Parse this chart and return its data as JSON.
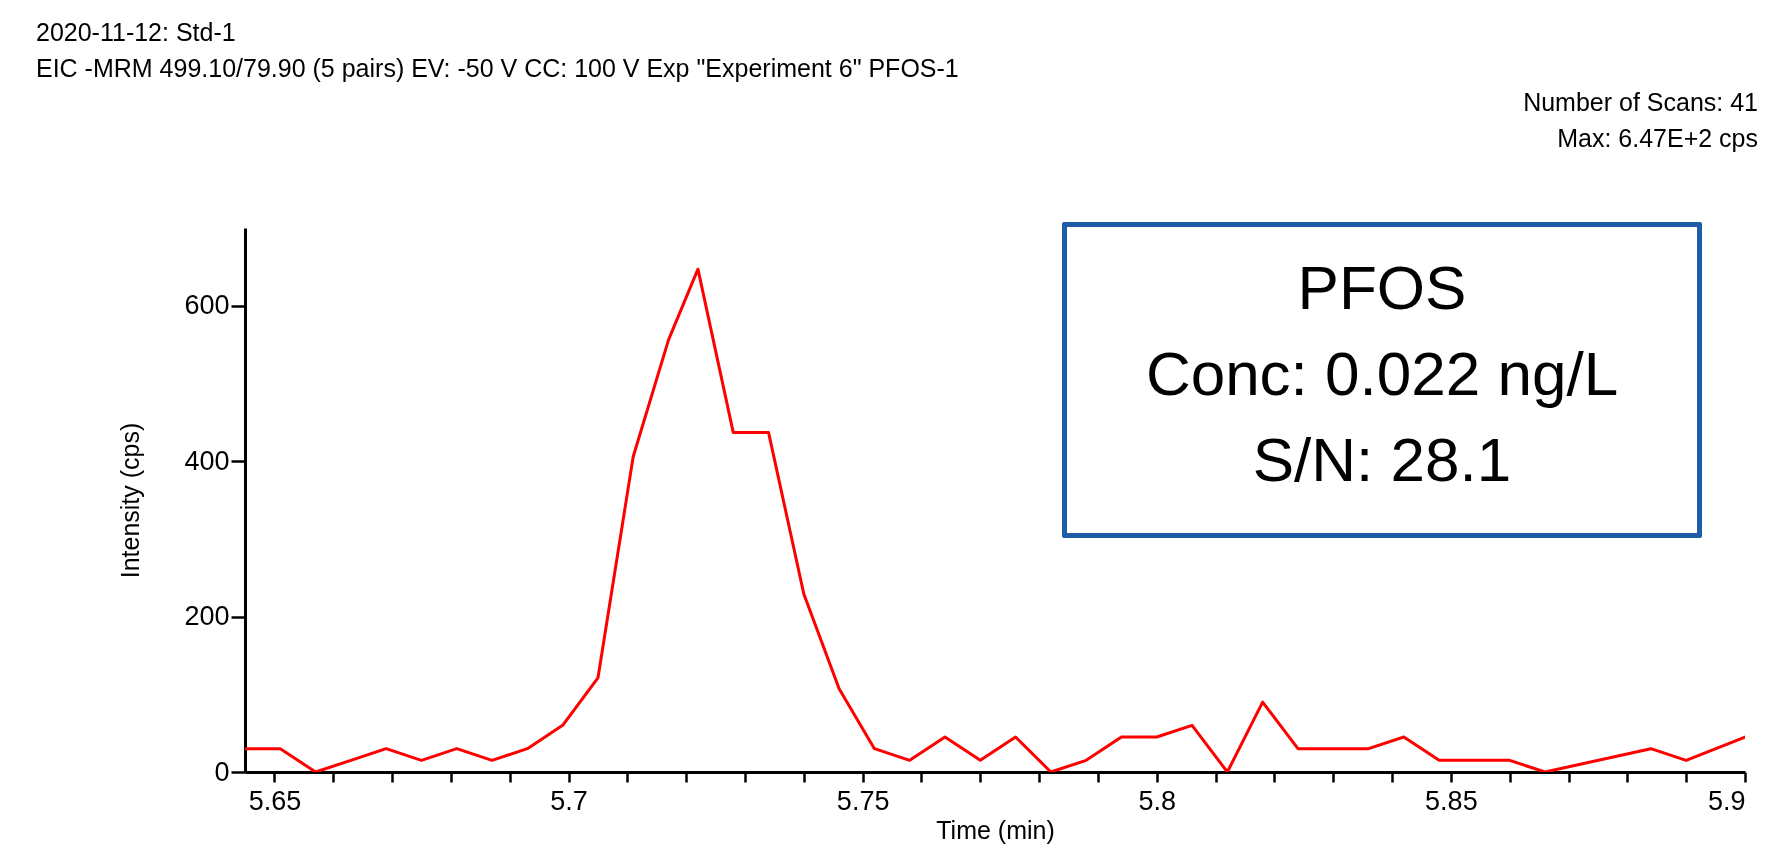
{
  "chart_data": {
    "type": "line",
    "title": "2020-11-12: Std-1",
    "subtitle": "EIC -MRM 499.10/79.90 (5 pairs) EV: -50 V CC: 100 V Exp \"Experiment 6\" PFOS-1",
    "annotations": [
      "Number of Scans: 41",
      "Max: 6.47E+2 cps",
      "PFOS",
      "Conc: 0.022 ng/L",
      "S/N: 28.1"
    ],
    "xlabel": "Time (min)",
    "ylabel": "Intensity (cps)",
    "x": [
      5.645,
      5.651,
      5.657,
      5.663,
      5.669,
      5.675,
      5.681,
      5.687,
      5.693,
      5.699,
      5.705,
      5.711,
      5.717,
      5.722,
      5.728,
      5.734,
      5.74,
      5.746,
      5.752,
      5.758,
      5.764,
      5.77,
      5.776,
      5.782,
      5.788,
      5.794,
      5.8,
      5.806,
      5.812,
      5.818,
      5.824,
      5.83,
      5.836,
      5.842,
      5.848,
      5.854,
      5.86,
      5.866,
      5.872,
      5.878,
      5.884,
      5.89,
      5.9
    ],
    "series": [
      {
        "color": "#ff0000",
        "values": [
          30,
          30,
          0,
          15,
          30,
          15,
          30,
          15,
          30,
          60,
          121,
          406,
          556,
          647,
          437,
          437,
          229,
          107,
          30,
          15,
          45,
          15,
          45,
          0,
          15,
          45,
          45,
          60,
          0,
          90,
          30,
          30,
          30,
          45,
          15,
          15,
          15,
          0,
          10,
          20,
          30,
          15,
          45
        ]
      }
    ],
    "xlim": [
      5.645,
      5.9
    ],
    "ylim": [
      0,
      700
    ],
    "xticks": [
      5.65,
      {
        "value": 5.66,
        "label": null
      },
      {
        "value": 5.67,
        "label": null
      },
      {
        "value": 5.68,
        "label": null
      },
      {
        "value": 5.69,
        "label": null
      },
      5.7,
      {
        "value": 5.71,
        "label": null
      },
      {
        "value": 5.72,
        "label": null
      },
      {
        "value": 5.73,
        "label": null
      },
      {
        "value": 5.74,
        "label": null
      },
      5.75,
      {
        "value": 5.76,
        "label": null
      },
      {
        "value": 5.77,
        "label": null
      },
      {
        "value": 5.78,
        "label": null
      },
      {
        "value": 5.79,
        "label": null
      },
      5.8,
      {
        "value": 5.81,
        "label": null
      },
      {
        "value": 5.82,
        "label": null
      },
      {
        "value": 5.83,
        "label": null
      },
      {
        "value": 5.84,
        "label": null
      },
      5.85,
      {
        "value": 5.86,
        "label": null
      },
      {
        "value": 5.87,
        "label": null
      },
      {
        "value": 5.88,
        "label": null
      },
      {
        "value": 5.89,
        "label": null
      },
      5.9
    ],
    "yticks": [
      0,
      200,
      400,
      600
    ],
    "grid": false,
    "marker": "none",
    "line_style": "solid"
  }
}
